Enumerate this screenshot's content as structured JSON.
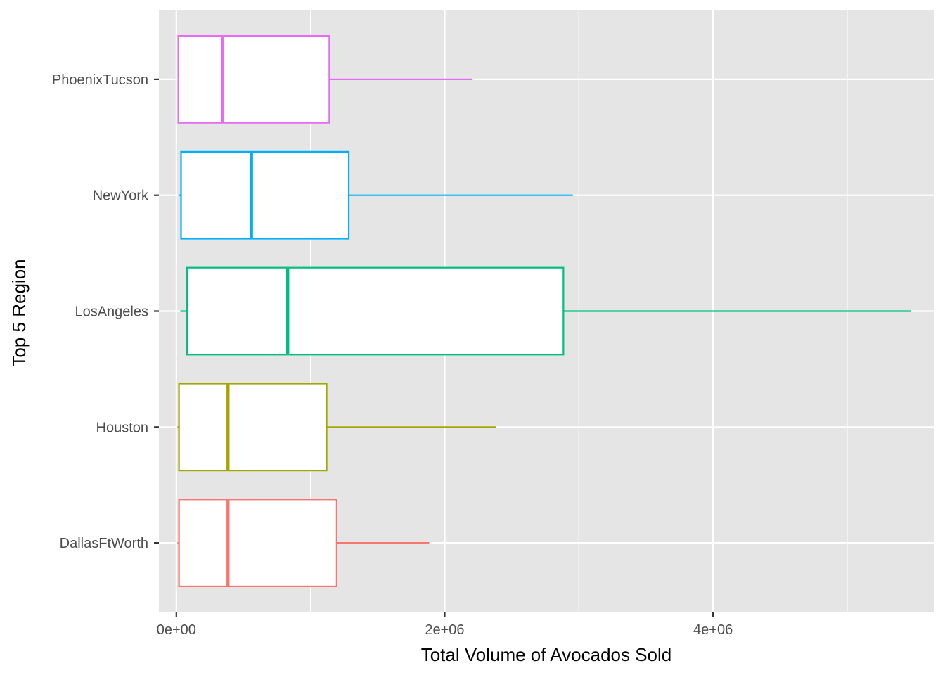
{
  "chart_data": {
    "type": "boxplot",
    "orientation": "horizontal",
    "xlabel": "Total Volume of Avocados Sold",
    "ylabel": "Top 5 Region",
    "xlim": [
      -130000,
      5650000
    ],
    "x_ticks": [
      {
        "value": 0,
        "label": "0e+00"
      },
      {
        "value": 2000000,
        "label": "2e+06"
      },
      {
        "value": 4000000,
        "label": "4e+06"
      }
    ],
    "x_minor_ticks": [
      1000000,
      3000000,
      5000000
    ],
    "grid": true,
    "legend": "none",
    "panel_color": "#e5e5e5",
    "grid_color": "#ffffff",
    "categories": [
      "DallasFtWorth",
      "Houston",
      "LosAngeles",
      "NewYork",
      "PhoenixTucson"
    ],
    "series": [
      {
        "category": "DallasFtWorth",
        "min": 8000,
        "q1": 20000,
        "median": 385000,
        "q3": 1195000,
        "max": 1885000,
        "color": "#F8766D"
      },
      {
        "category": "Houston",
        "min": 8000,
        "q1": 20000,
        "median": 385000,
        "q3": 1120000,
        "max": 2380000,
        "color": "#A3A500"
      },
      {
        "category": "LosAngeles",
        "min": 30000,
        "q1": 80000,
        "median": 830000,
        "q3": 2885000,
        "max": 5475000,
        "color": "#00BF7D"
      },
      {
        "category": "NewYork",
        "min": 15000,
        "q1": 35000,
        "median": 560000,
        "q3": 1285000,
        "max": 2955000,
        "color": "#00B0F6"
      },
      {
        "category": "PhoenixTucson",
        "min": 10000,
        "q1": 15000,
        "median": 345000,
        "q3": 1140000,
        "max": 2205000,
        "color": "#E76BF3"
      }
    ]
  }
}
